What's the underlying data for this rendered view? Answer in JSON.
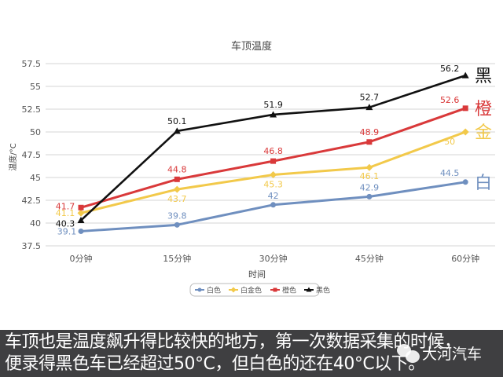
{
  "chart_data": {
    "type": "line",
    "title": "车顶温度",
    "xlabel": "时间",
    "ylabel": "温度/°C",
    "categories": [
      "0分钟",
      "15分钟",
      "30分钟",
      "45分钟",
      "60分钟"
    ],
    "ylim": [
      37.5,
      57.5
    ],
    "yticks": [
      "37.5",
      "40",
      "42.5",
      "45",
      "47.5",
      "50",
      "52.5",
      "55",
      "57.5"
    ],
    "grid": true,
    "legend_position": "bottom",
    "series": [
      {
        "name": "白色",
        "color": "#6f8fbf",
        "marker": "circle",
        "values": [
          39.1,
          39.8,
          42,
          42.9,
          44.5
        ],
        "end_label": "白"
      },
      {
        "name": "白金色",
        "color": "#f2c94a",
        "marker": "diamond",
        "values": [
          41.1,
          43.7,
          45.3,
          46.1,
          50
        ],
        "end_label": "金"
      },
      {
        "name": "橙色",
        "color": "#d9393a",
        "marker": "square",
        "values": [
          41.7,
          44.8,
          46.8,
          48.9,
          52.6
        ],
        "end_label": "橙"
      },
      {
        "name": "黑色",
        "color": "#111111",
        "marker": "triangle",
        "values": [
          40.3,
          50.1,
          51.9,
          52.7,
          56.2
        ],
        "end_label": "黑"
      }
    ]
  },
  "caption": {
    "line1": "车顶也是温度飙升得比较快的地方，第一次数据采集的时候，",
    "line2": "便录得黑色车已经超过50°C，但白色的还在40°C以下。"
  },
  "watermark": {
    "text": "大河汽车"
  }
}
